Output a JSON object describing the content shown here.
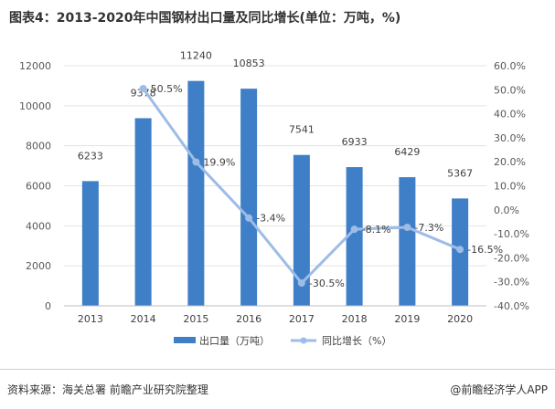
{
  "title": "图表4：2013-2020年中国钢材出口量及同比增长(单位：万吨，%)",
  "footer": {
    "source": "资料来源：海关总署 前瞻产业研究院整理",
    "brand": "@前瞻经济学人APP"
  },
  "colors": {
    "bar": "#3f7fc8",
    "line": "#9dbce6",
    "grid": "#e3e3e3",
    "axis": "#bfbfbf",
    "text": "#595959"
  },
  "chart_data": {
    "type": "bar",
    "categories": [
      "2013",
      "2014",
      "2015",
      "2016",
      "2017",
      "2018",
      "2019",
      "2020"
    ],
    "series": [
      {
        "name": "出口量（万吨）",
        "type": "bar",
        "axis": "left",
        "values": [
          6233,
          9378,
          11240,
          10853,
          7541,
          6933,
          6429,
          5367
        ],
        "labels": [
          "6233",
          "9378",
          "11240",
          "10853",
          "7541",
          "6933",
          "6429",
          "5367"
        ]
      },
      {
        "name": "同比增长（%）",
        "type": "line",
        "axis": "right",
        "values": [
          null,
          50.5,
          19.9,
          -3.4,
          -30.5,
          -8.1,
          -7.3,
          -16.5
        ],
        "labels": [
          null,
          "50.5%",
          "19.9%",
          "-3.4%",
          "-30.5%",
          "-8.1%",
          "-7.3%",
          "-16.5%"
        ]
      }
    ],
    "y_left": {
      "ylim": [
        0,
        12000
      ],
      "ticks": [
        0,
        2000,
        4000,
        6000,
        8000,
        10000,
        12000
      ],
      "tick_labels": [
        "0",
        "2000",
        "4000",
        "6000",
        "8000",
        "10000",
        "12000"
      ]
    },
    "y_right": {
      "ylim": [
        -40,
        60
      ],
      "ticks": [
        -40,
        -30,
        -20,
        -10,
        0,
        10,
        20,
        30,
        40,
        50,
        60
      ],
      "tick_labels": [
        "-40.0%",
        "-30.0%",
        "-20.0%",
        "-10.0%",
        "0.0%",
        "10.0%",
        "20.0%",
        "30.0%",
        "40.0%",
        "50.0%",
        "60.0%"
      ]
    },
    "grid": true,
    "legend": "bottom-center"
  }
}
